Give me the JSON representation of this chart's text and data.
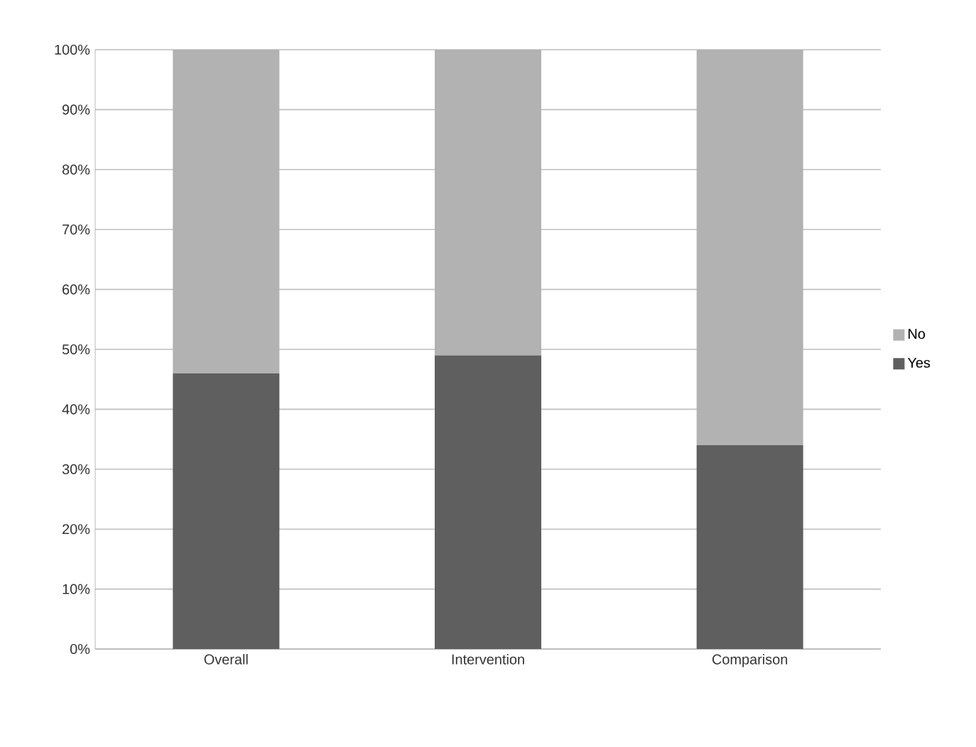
{
  "chart_data": {
    "type": "bar",
    "stacked": true,
    "categories": [
      "Overall",
      "Intervention",
      "Comparison"
    ],
    "series": [
      {
        "name": "Yes",
        "color": "#5f5f5f",
        "values": [
          46,
          49,
          34
        ]
      },
      {
        "name": "No",
        "color": "#b2b2b2",
        "values": [
          54,
          51,
          66
        ]
      }
    ],
    "ylim": [
      0,
      100
    ],
    "yticks": [
      {
        "value": 0,
        "label": "0%"
      },
      {
        "value": 10,
        "label": "10%"
      },
      {
        "value": 20,
        "label": "20%"
      },
      {
        "value": 30,
        "label": "30%"
      },
      {
        "value": 40,
        "label": "40%"
      },
      {
        "value": 50,
        "label": "50%"
      },
      {
        "value": 60,
        "label": "60%"
      },
      {
        "value": 70,
        "label": "70%"
      },
      {
        "value": 80,
        "label": "80%"
      },
      {
        "value": 90,
        "label": "90%"
      },
      {
        "value": 100,
        "label": "100%"
      }
    ],
    "grid": "y",
    "legend": "right"
  }
}
